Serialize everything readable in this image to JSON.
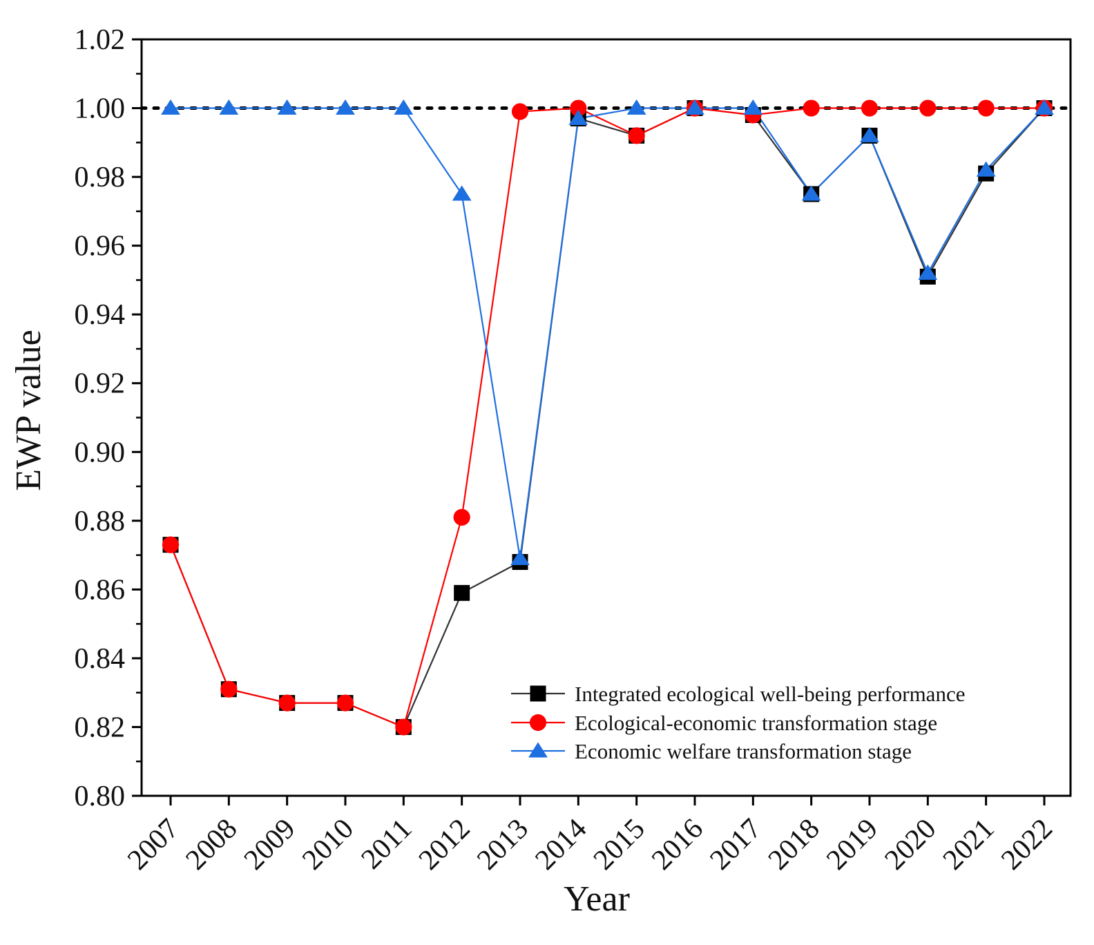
{
  "chart_data": {
    "type": "line",
    "title": "",
    "xlabel": "Year",
    "ylabel": "EWP value",
    "ylim": [
      0.8,
      1.02
    ],
    "y_ticks": [
      "0.80",
      "0.82",
      "0.84",
      "0.86",
      "0.88",
      "0.90",
      "0.92",
      "0.94",
      "0.96",
      "0.98",
      "1.00",
      "1.02"
    ],
    "categories": [
      "2007",
      "2008",
      "2009",
      "2010",
      "2011",
      "2012",
      "2013",
      "2014",
      "2015",
      "2016",
      "2017",
      "2018",
      "2019",
      "2020",
      "2021",
      "2022"
    ],
    "reference_line": {
      "value": 1.0,
      "style": "dotted",
      "color": "#000000"
    },
    "legend_position": "bottom-right",
    "series": [
      {
        "name": "Integrated ecological well-being performance",
        "marker": "square",
        "color": "#000000",
        "line_color": "#333333",
        "values": [
          0.873,
          0.831,
          0.827,
          0.827,
          0.82,
          0.859,
          0.868,
          0.997,
          0.992,
          1.0,
          0.998,
          0.975,
          0.992,
          0.951,
          0.981,
          1.0
        ]
      },
      {
        "name": "Ecological-economic transformation stage",
        "marker": "circle",
        "color": "#ff0000",
        "line_color": "#ff0000",
        "values": [
          0.873,
          0.831,
          0.827,
          0.827,
          0.82,
          0.881,
          0.999,
          1.0,
          0.992,
          1.0,
          0.998,
          1.0,
          1.0,
          1.0,
          1.0,
          1.0
        ]
      },
      {
        "name": "Economic welfare transformation stage",
        "marker": "triangle",
        "color": "#1e6fe0",
        "line_color": "#1e6fe0",
        "values": [
          1.0,
          1.0,
          1.0,
          1.0,
          1.0,
          0.975,
          0.869,
          0.997,
          1.0,
          1.0,
          1.0,
          0.975,
          0.992,
          0.952,
          0.982,
          1.0
        ]
      }
    ]
  }
}
